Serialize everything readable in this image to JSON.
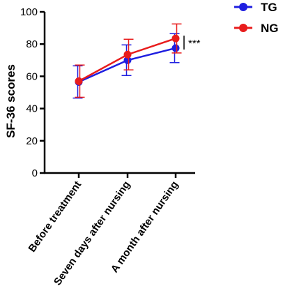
{
  "chart_data": {
    "type": "line",
    "title": "",
    "xlabel": "",
    "ylabel": "SF-36 scores",
    "ylim": [
      0,
      100
    ],
    "yticks": [
      0,
      20,
      40,
      60,
      80,
      100
    ],
    "categories": [
      "Before treatment",
      "Seven days after nursing",
      "A month after nursing"
    ],
    "series": [
      {
        "name": "TG",
        "color": "#1f1fe0",
        "values": [
          56.5,
          70,
          77.5
        ],
        "errors": [
          10,
          9.5,
          9
        ]
      },
      {
        "name": "NG",
        "color": "#e81c1c",
        "values": [
          57,
          73.5,
          83.5
        ],
        "errors": [
          10,
          9.5,
          9
        ]
      }
    ],
    "legend_position": "top-right",
    "grid": false,
    "annotation": "***"
  }
}
